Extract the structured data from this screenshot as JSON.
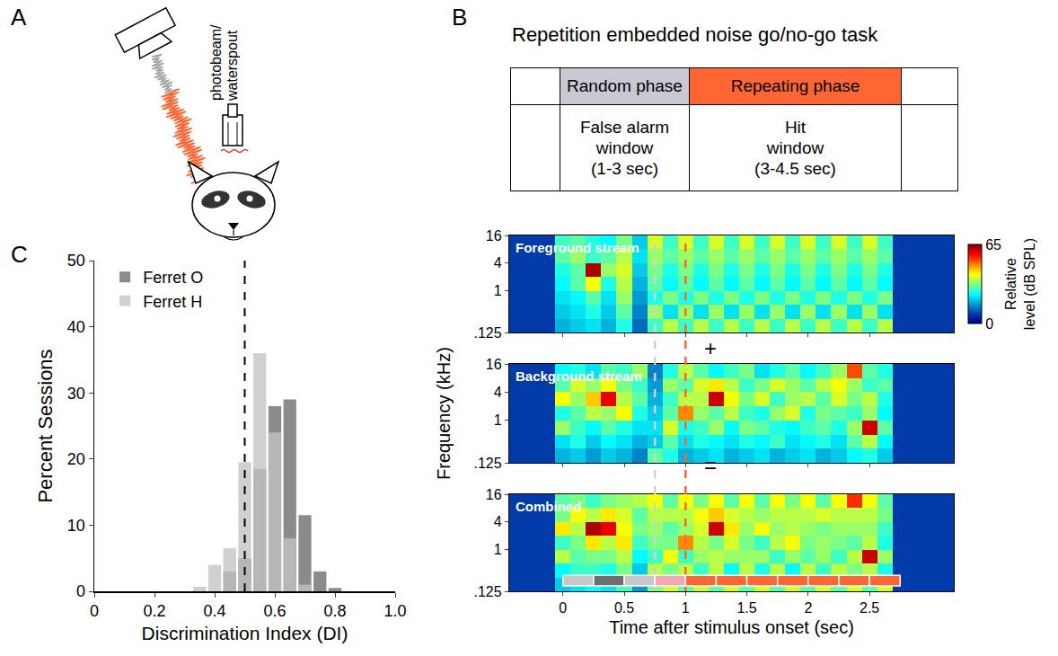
{
  "panel_labels": [
    "A",
    "B",
    "C"
  ],
  "schematic_A": {
    "label": "photobeam/ waterspout"
  },
  "task_B": {
    "title": "Repetition embedded noise go/no-go task",
    "phases": [
      {
        "name": "Random phase",
        "color": "#c9c9d3",
        "window": "False alarm window (1-3 sec)"
      },
      {
        "name": "Repeating phase",
        "color": "#ff6633",
        "window": "Hit window (3-4.5 sec)"
      }
    ]
  },
  "spectrogram": {
    "ylabel": "Frequency (kHz)",
    "xlabel": "Time after stimulus onset (sec)",
    "operators": [
      "+",
      "="
    ],
    "colorbar": {
      "range": [
        0,
        65
      ],
      "ticks": [
        0,
        65
      ],
      "title": "Relative level (dB SPL)"
    },
    "markers": [
      {
        "x": 0.75,
        "color": "#d0d0d0",
        "line_style": "dashed"
      },
      {
        "x": 1,
        "color": "#ff6633",
        "line_style": "dashed"
      }
    ],
    "segments": [
      {
        "start": 0,
        "end": 0.25,
        "color": "#c8c8c8"
      },
      {
        "start": 0.25,
        "end": 0.5,
        "color": "#6e6e6e"
      },
      {
        "start": 0.5,
        "end": 0.75,
        "color": "#c8c8c8"
      },
      {
        "start": 0.75,
        "end": 1,
        "color": "#f4a6b5"
      },
      {
        "start": 1,
        "end": 1.25,
        "color": "#ff6633"
      },
      {
        "start": 1.25,
        "end": 1.5,
        "color": "#ff6633"
      },
      {
        "start": 1.5,
        "end": 1.75,
        "color": "#ff6633"
      },
      {
        "start": 1.75,
        "end": 2,
        "color": "#ff6633"
      },
      {
        "start": 2,
        "end": 2.25,
        "color": "#ff6633"
      },
      {
        "start": 2.25,
        "end": 2.5,
        "color": "#ff6633"
      },
      {
        "start": 2.5,
        "end": 2.75,
        "color": "#ff6633"
      }
    ]
  },
  "chart_data": [
    {
      "type": "histogram",
      "xlabel": "Discrimination Index (DI)",
      "ylabel": "Percent Sessions",
      "bins": [
        0.325,
        0.375,
        0.425,
        0.475,
        0.525,
        0.575,
        0.625,
        0.675,
        0.725,
        0.775,
        0.825
      ],
      "series": [
        {
          "name": "Ferret O",
          "color": "#6b6b6b",
          "values": [
            0,
            0,
            3,
            5,
            18.5,
            28,
            29,
            11.5,
            3,
            0.5
          ]
        },
        {
          "name": "Ferret H",
          "color": "#c4c4c4",
          "values": [
            0.7,
            4,
            6.5,
            19.5,
            36,
            24,
            8,
            1,
            0,
            0
          ]
        }
      ],
      "xlim": [
        0,
        1
      ],
      "ylim": [
        0,
        50
      ],
      "xticks": [
        0,
        0.2,
        0.4,
        0.6,
        0.8,
        {
          "value": 1,
          "label": "1.0"
        }
      ],
      "yticks": [
        0,
        10,
        20,
        30,
        40,
        50
      ],
      "legend": "top left",
      "reference_line": {
        "x": 0.5,
        "line_style": "dashed"
      }
    },
    {
      "type": "heatmap",
      "title": "Foreground stream",
      "log": "y",
      "tick_labels": "y",
      "x": [
        -0.375,
        -0.25,
        -0.125,
        0,
        0.125,
        0.25,
        0.375,
        0.5,
        0.625,
        0.75,
        0.875,
        1,
        1.125,
        1.25,
        1.375,
        1.5,
        1.625,
        1.75,
        1.875,
        2,
        2.125,
        2.25,
        2.375,
        2.5,
        2.625,
        2.75,
        2.875,
        3,
        3.125
      ],
      "y_bins": [
        0.125,
        0.25,
        0.5,
        1,
        2,
        4,
        8,
        16
      ],
      "z": [
        [
          8,
          8,
          8,
          18,
          20,
          22,
          18,
          26,
          12,
          28,
          36,
          28,
          36,
          28,
          36,
          28,
          36,
          28,
          36,
          28,
          36,
          28,
          36,
          28,
          36,
          8,
          8,
          8,
          8
        ],
        [
          8,
          8,
          8,
          20,
          22,
          26,
          20,
          30,
          14,
          34,
          22,
          34,
          22,
          34,
          22,
          34,
          22,
          34,
          22,
          34,
          22,
          34,
          22,
          34,
          22,
          8,
          8,
          8,
          8
        ],
        [
          8,
          8,
          8,
          22,
          24,
          30,
          22,
          34,
          16,
          26,
          32,
          26,
          32,
          26,
          32,
          26,
          32,
          26,
          32,
          26,
          32,
          26,
          32,
          26,
          32,
          8,
          8,
          8,
          8
        ],
        [
          8,
          8,
          8,
          24,
          30,
          40,
          26,
          36,
          18,
          30,
          24,
          30,
          24,
          30,
          24,
          30,
          24,
          30,
          24,
          30,
          24,
          30,
          24,
          30,
          24,
          8,
          8,
          8,
          8
        ],
        [
          8,
          8,
          8,
          26,
          30,
          62,
          34,
          38,
          20,
          32,
          26,
          32,
          26,
          32,
          26,
          32,
          26,
          32,
          26,
          32,
          26,
          32,
          26,
          32,
          26,
          8,
          8,
          8,
          8
        ],
        [
          8,
          8,
          8,
          30,
          34,
          28,
          30,
          36,
          22,
          34,
          30,
          34,
          30,
          34,
          30,
          34,
          30,
          34,
          30,
          34,
          30,
          34,
          30,
          34,
          30,
          8,
          8,
          8,
          8
        ],
        [
          8,
          8,
          8,
          28,
          30,
          26,
          24,
          32,
          20,
          38,
          28,
          38,
          28,
          38,
          28,
          38,
          28,
          38,
          28,
          38,
          28,
          38,
          28,
          38,
          28,
          8,
          8,
          8,
          8
        ]
      ],
      "xlim": [
        -0.4375,
        3.1875
      ],
      "ylim": [
        0.125,
        16
      ],
      "xticks": [
        0,
        0.5,
        1,
        1.5,
        2,
        2.5
      ],
      "yticks": [
        {
          "value": 0.125,
          "label": ".125"
        },
        1,
        4,
        16
      ]
    },
    {
      "type": "heatmap",
      "title": "Background stream",
      "log": "y",
      "tick_labels": "y",
      "x": [
        -0.375,
        -0.25,
        -0.125,
        0,
        0.125,
        0.25,
        0.375,
        0.5,
        0.625,
        0.75,
        0.875,
        1,
        1.125,
        1.25,
        1.375,
        1.5,
        1.625,
        1.75,
        1.875,
        2,
        2.125,
        2.25,
        2.375,
        2.5,
        2.625,
        2.75,
        2.875,
        3,
        3.125
      ],
      "y_bins": [
        0.125,
        0.25,
        0.5,
        1,
        2,
        4,
        8,
        16
      ],
      "z": [
        [
          8,
          8,
          8,
          18,
          20,
          16,
          20,
          18,
          14,
          30,
          26,
          18,
          20,
          22,
          18,
          20,
          22,
          18,
          20,
          22,
          18,
          20,
          24,
          26,
          20,
          8,
          8,
          8,
          8
        ],
        [
          8,
          8,
          8,
          22,
          26,
          20,
          24,
          22,
          18,
          20,
          30,
          22,
          26,
          24,
          22,
          26,
          24,
          28,
          22,
          24,
          26,
          22,
          30,
          36,
          24,
          8,
          8,
          8,
          8
        ],
        [
          8,
          8,
          8,
          34,
          28,
          24,
          30,
          26,
          22,
          22,
          38,
          26,
          28,
          34,
          24,
          32,
          30,
          26,
          24,
          28,
          30,
          26,
          34,
          60,
          30,
          8,
          8,
          8,
          8
        ],
        [
          8,
          8,
          8,
          26,
          30,
          36,
          34,
          40,
          26,
          20,
          30,
          48,
          34,
          30,
          36,
          28,
          26,
          34,
          38,
          26,
          32,
          30,
          28,
          34,
          24,
          8,
          8,
          8,
          8
        ],
        [
          8,
          8,
          8,
          40,
          34,
          44,
          58,
          36,
          30,
          18,
          28,
          36,
          36,
          60,
          40,
          32,
          38,
          28,
          34,
          36,
          30,
          38,
          32,
          36,
          26,
          8,
          8,
          8,
          8
        ],
        [
          8,
          8,
          8,
          30,
          38,
          34,
          40,
          32,
          28,
          16,
          34,
          30,
          38,
          42,
          36,
          28,
          32,
          38,
          34,
          30,
          36,
          40,
          34,
          28,
          30,
          8,
          8,
          8,
          8
        ],
        [
          8,
          8,
          8,
          24,
          26,
          22,
          30,
          28,
          34,
          14,
          26,
          36,
          30,
          24,
          28,
          32,
          22,
          26,
          30,
          24,
          28,
          34,
          52,
          30,
          26,
          8,
          8,
          8,
          8
        ]
      ],
      "xlim": [
        -0.4375,
        3.1875
      ],
      "ylim": [
        0.125,
        16
      ],
      "xticks": [
        0,
        0.5,
        1,
        1.5,
        2,
        2.5
      ],
      "yticks": [
        {
          "value": 0.125,
          "label": ".125"
        },
        1,
        4,
        16
      ]
    },
    {
      "type": "heatmap",
      "title": "Combined",
      "log": "y",
      "x": [
        -0.375,
        -0.25,
        -0.125,
        0,
        0.125,
        0.25,
        0.375,
        0.5,
        0.625,
        0.75,
        0.875,
        1,
        1.125,
        1.25,
        1.375,
        1.5,
        1.625,
        1.75,
        1.875,
        2,
        2.125,
        2.25,
        2.375,
        2.5,
        2.625,
        2.75,
        2.875,
        3,
        3.125
      ],
      "y_bins": [
        0.125,
        0.25,
        0.5,
        1,
        2,
        4,
        8,
        16
      ],
      "z": [
        [
          8,
          8,
          8,
          20,
          22,
          24,
          22,
          28,
          16,
          32,
          38,
          30,
          38,
          30,
          38,
          30,
          38,
          30,
          38,
          30,
          38,
          30,
          38,
          30,
          38,
          8,
          8,
          8,
          8
        ],
        [
          8,
          8,
          8,
          24,
          28,
          28,
          26,
          32,
          20,
          36,
          32,
          36,
          28,
          36,
          24,
          36,
          26,
          36,
          24,
          36,
          28,
          36,
          32,
          36,
          26,
          8,
          8,
          8,
          8
        ],
        [
          8,
          8,
          8,
          36,
          30,
          32,
          32,
          36,
          24,
          28,
          40,
          28,
          34,
          36,
          34,
          34,
          34,
          28,
          34,
          30,
          34,
          28,
          36,
          60,
          34,
          8,
          8,
          8,
          8
        ],
        [
          8,
          8,
          8,
          28,
          32,
          42,
          36,
          42,
          28,
          32,
          32,
          48,
          36,
          32,
          38,
          32,
          28,
          36,
          40,
          32,
          34,
          32,
          30,
          36,
          26,
          8,
          8,
          8,
          8
        ],
        [
          8,
          8,
          8,
          42,
          36,
          62,
          58,
          40,
          32,
          34,
          30,
          34,
          38,
          60,
          42,
          34,
          40,
          34,
          36,
          34,
          32,
          34,
          34,
          34,
          28,
          8,
          8,
          8,
          8
        ],
        [
          8,
          8,
          8,
          32,
          40,
          36,
          42,
          38,
          30,
          36,
          36,
          36,
          40,
          44,
          38,
          36,
          34,
          36,
          36,
          36,
          38,
          36,
          36,
          36,
          32,
          8,
          8,
          8,
          8
        ],
        [
          8,
          8,
          8,
          30,
          32,
          28,
          32,
          34,
          36,
          40,
          30,
          40,
          32,
          40,
          30,
          40,
          30,
          40,
          32,
          40,
          30,
          40,
          54,
          40,
          30,
          8,
          8,
          8,
          8
        ]
      ],
      "xlim": [
        -0.4375,
        3.1875
      ],
      "ylim": [
        0.125,
        16
      ],
      "xticks": [
        0,
        0.5,
        1,
        1.5,
        2,
        2.5
      ],
      "yticks": [
        {
          "value": 0.125,
          "label": ".125"
        },
        1,
        4,
        16
      ]
    }
  ]
}
